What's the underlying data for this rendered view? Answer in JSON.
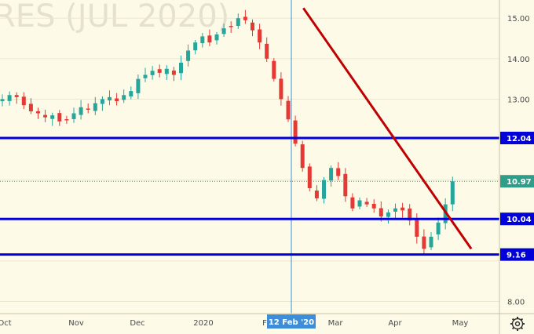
{
  "watermark": "RES (JUL 2020)",
  "settings_icon": "gear-icon",
  "chart_data": {
    "type": "candlestick",
    "title": "",
    "xlabel": "",
    "ylabel": "",
    "ylim": [
      7.7,
      15.45
    ],
    "y_ticks": [
      "15.00",
      "14.00",
      "13.00",
      "12.04",
      "10.97",
      "10.04",
      "9.16",
      "8.00"
    ],
    "x_ticks": [
      "Oct",
      "Nov",
      "Dec",
      "2020",
      "F",
      "Mar",
      "Apr",
      "May"
    ],
    "crosshair_label": "12 Feb '20",
    "last_price": 10.97,
    "horizontal_levels": [
      12.04,
      10.04,
      9.16
    ],
    "trend_line": {
      "from": [
        33,
        15.25
      ],
      "to": [
        61,
        9.3
      ]
    },
    "colors": {
      "up": "#26a69a",
      "down": "#e53935",
      "level": "#0000d8",
      "trend": "#c00000",
      "crosshair": "#3d8ddb",
      "last": "#2e9e8a"
    },
    "closes": [
      13.0,
      13.1,
      13.05,
      12.85,
      12.7,
      12.65,
      12.55,
      12.6,
      12.45,
      12.5,
      12.65,
      12.8,
      12.75,
      12.9,
      13.0,
      13.05,
      12.95,
      13.1,
      13.2,
      13.5,
      13.6,
      13.7,
      13.65,
      13.75,
      13.6,
      13.9,
      14.2,
      14.4,
      14.55,
      14.4,
      14.6,
      14.75,
      14.8,
      15.0,
      14.95,
      14.7,
      14.4,
      14.0,
      13.5,
      13.0,
      12.5,
      11.9,
      11.3,
      10.8,
      10.55,
      11.0,
      11.3,
      11.1,
      10.6,
      10.3,
      10.5,
      10.4,
      10.3,
      10.1,
      10.2,
      10.3,
      10.25,
      10.0,
      9.6,
      9.3,
      9.6,
      9.95,
      10.4,
      10.97
    ]
  }
}
